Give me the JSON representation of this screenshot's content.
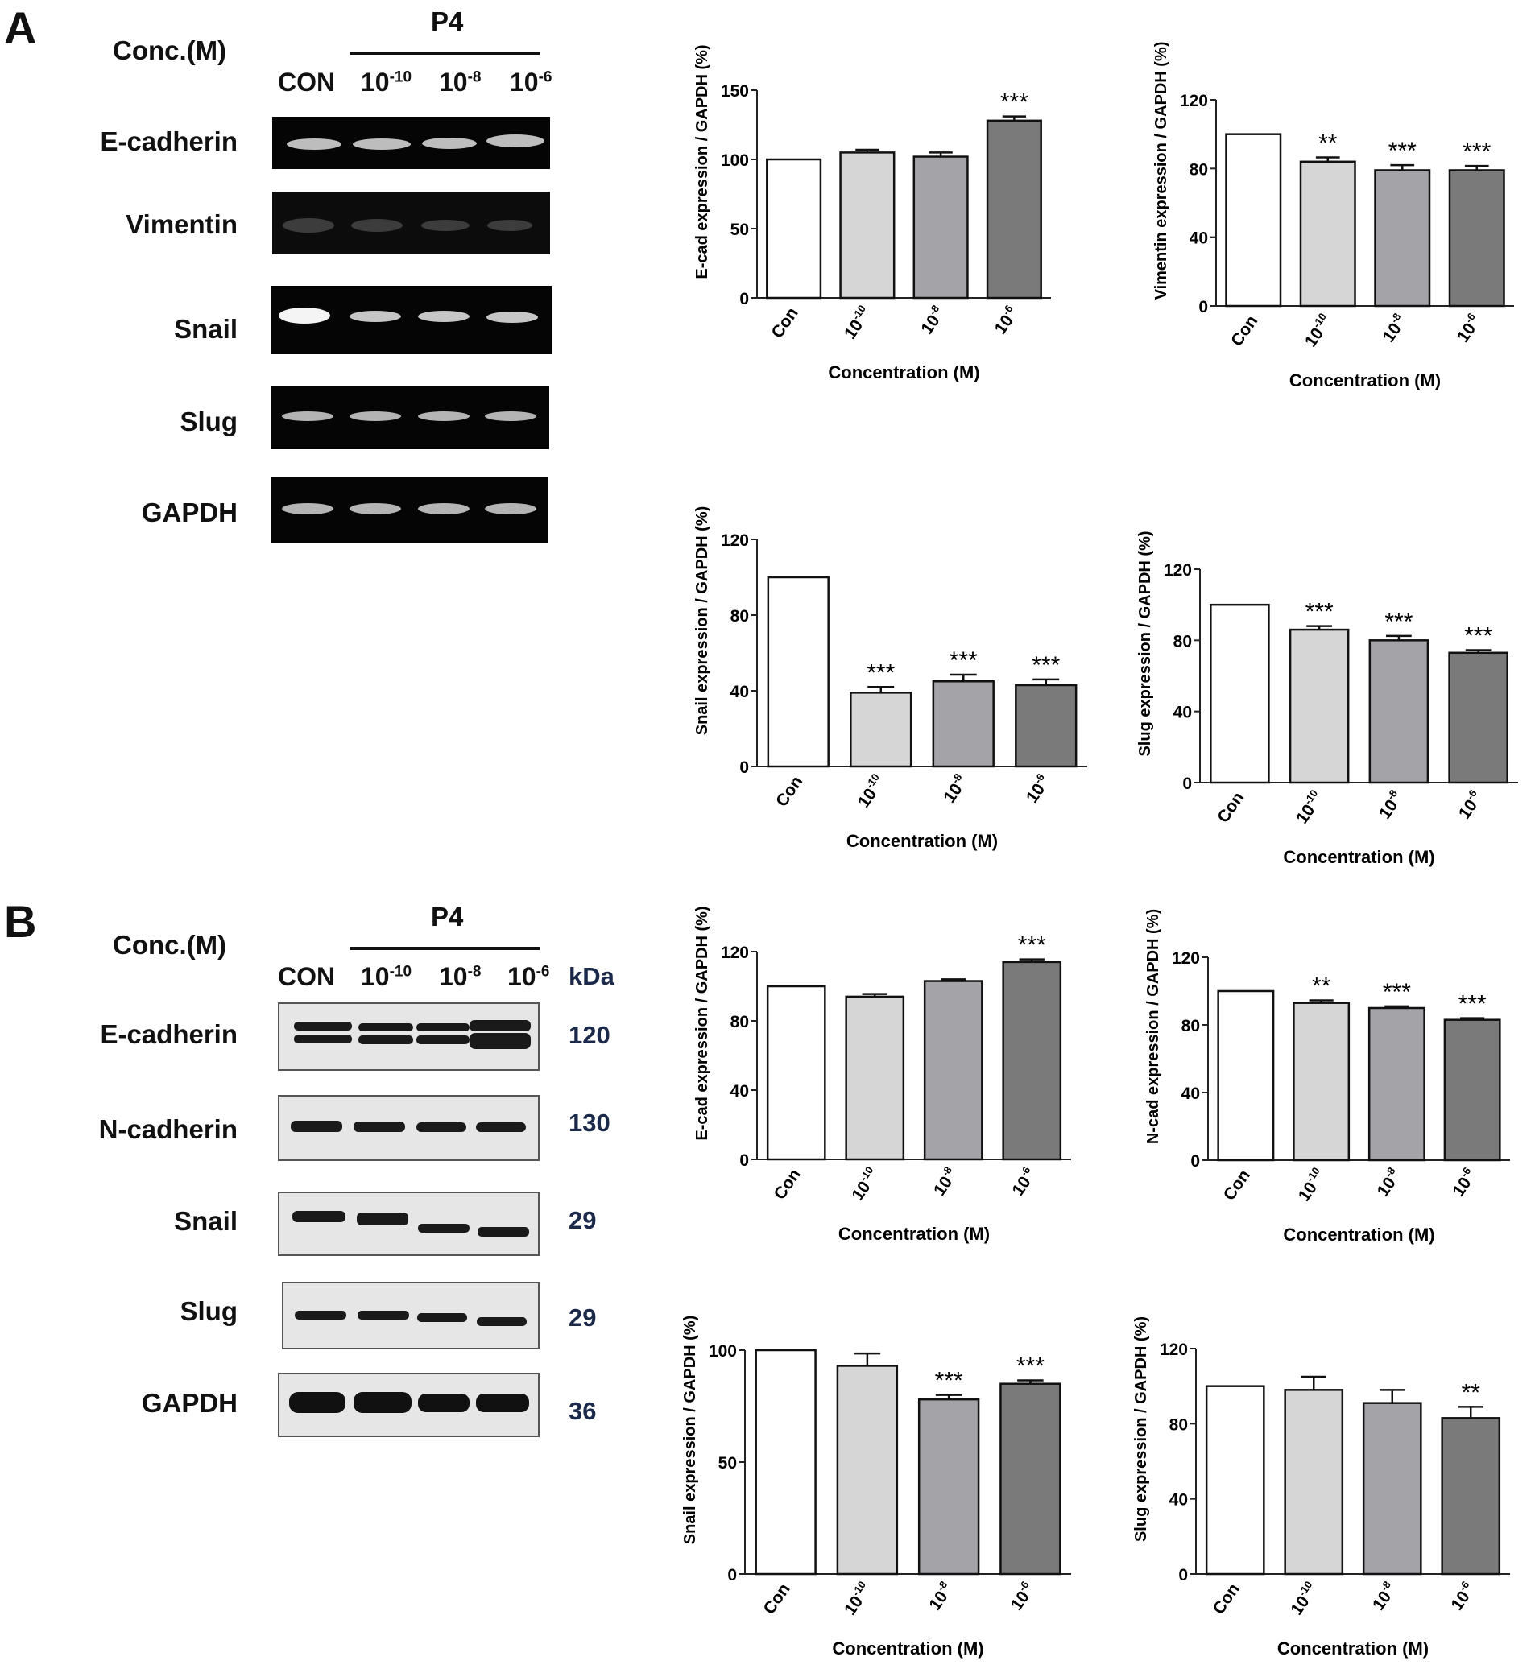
{
  "panels": {
    "A": {
      "letter": "A",
      "conc_label": "Conc.(M)",
      "treatment": "P4",
      "lanes": [
        {
          "base": "CON",
          "exp": ""
        },
        {
          "base": "10",
          "exp": "-10"
        },
        {
          "base": "10",
          "exp": "-8"
        },
        {
          "base": "10",
          "exp": "-6"
        }
      ],
      "rows": [
        "E-cadherin",
        "Vimentin",
        "Snail",
        "Slug",
        "GAPDH"
      ]
    },
    "B": {
      "letter": "B",
      "conc_label": "Conc.(M)",
      "treatment": "P4",
      "lanes": [
        {
          "base": "CON",
          "exp": ""
        },
        {
          "base": "10",
          "exp": "-10"
        },
        {
          "base": "10",
          "exp": "-8"
        },
        {
          "base": "10",
          "exp": "-6"
        }
      ],
      "kda_header": "kDa",
      "rows": [
        {
          "name": "E-cadherin",
          "kda": "120"
        },
        {
          "name": "N-cadherin",
          "kda": "130"
        },
        {
          "name": "Snail",
          "kda": "29"
        },
        {
          "name": "Slug",
          "kda": "29"
        },
        {
          "name": "GAPDH",
          "kda": "36"
        }
      ]
    }
  },
  "category_labels": [
    {
      "base": "Con",
      "exp": ""
    },
    {
      "base": "10",
      "exp": "-10"
    },
    {
      "base": "10",
      "exp": "-8"
    },
    {
      "base": "10",
      "exp": "-6"
    }
  ],
  "bar_colors": [
    "#ffffff",
    "#d6d6d6",
    "#a3a3a8",
    "#7a7a7a"
  ],
  "chart_data": [
    {
      "type": "bar",
      "panel": "A",
      "ylabel": "E-cad expression / GAPDH (%)",
      "xlabel": "Concentration (M)",
      "yticks": [
        0,
        50,
        100,
        150
      ],
      "ylim": [
        0,
        150
      ],
      "values": [
        100,
        105,
        102,
        128
      ],
      "errors": [
        0,
        2,
        3,
        3
      ],
      "significance": [
        "",
        "",
        "",
        "***"
      ]
    },
    {
      "type": "bar",
      "panel": "A",
      "ylabel": "Vimentin expression / GAPDH (%)",
      "xlabel": "Concentration (M)",
      "yticks": [
        0,
        40,
        80,
        120
      ],
      "ylim": [
        0,
        120
      ],
      "values": [
        100,
        84,
        79,
        79
      ],
      "errors": [
        0,
        2.5,
        3,
        2.5
      ],
      "significance": [
        "",
        "**",
        "***",
        "***"
      ]
    },
    {
      "type": "bar",
      "panel": "A",
      "ylabel": "Snail expression / GAPDH (%)",
      "xlabel": "Concentration (M)",
      "yticks": [
        0,
        40,
        80,
        120
      ],
      "ylim": [
        0,
        120
      ],
      "values": [
        100,
        39,
        45,
        43
      ],
      "errors": [
        0,
        3,
        3.5,
        3
      ],
      "significance": [
        "",
        "***",
        "***",
        "***"
      ]
    },
    {
      "type": "bar",
      "panel": "A",
      "ylabel": "Slug expression / GAPDH (%)",
      "xlabel": "Concentration (M)",
      "yticks": [
        0,
        40,
        80,
        120
      ],
      "ylim": [
        0,
        120
      ],
      "values": [
        100,
        86,
        80,
        73
      ],
      "errors": [
        0,
        2,
        2.5,
        1.5
      ],
      "significance": [
        "",
        "***",
        "***",
        "***"
      ]
    },
    {
      "type": "bar",
      "panel": "B",
      "ylabel": "E-cad expression / GAPDH (%)",
      "xlabel": "Concentration (M)",
      "yticks": [
        0,
        40,
        80,
        120
      ],
      "ylim": [
        0,
        120
      ],
      "values": [
        100,
        94,
        103,
        114
      ],
      "errors": [
        0,
        1.5,
        1,
        1.5
      ],
      "significance": [
        "",
        "",
        "",
        "***"
      ]
    },
    {
      "type": "bar",
      "panel": "B",
      "ylabel": "N-cad expression / GAPDH (%)",
      "xlabel": "Concentration (M)",
      "yticks": [
        0,
        40,
        80,
        120
      ],
      "ylim": [
        0,
        120
      ],
      "values": [
        100,
        93,
        90,
        83
      ],
      "errors": [
        0,
        1.5,
        1,
        1
      ],
      "significance": [
        "",
        "**",
        "***",
        "***"
      ]
    },
    {
      "type": "bar",
      "panel": "B",
      "ylabel": "Snail expression / GAPDH (%)",
      "xlabel": "Concentration (M)",
      "yticks": [
        0,
        50,
        100
      ],
      "ylim": [
        0,
        100
      ],
      "values": [
        100,
        93,
        78,
        85
      ],
      "errors": [
        0,
        5.5,
        2,
        1.5
      ],
      "significance": [
        "",
        "",
        "***",
        "***"
      ]
    },
    {
      "type": "bar",
      "panel": "B",
      "ylabel": "Slug expression / GAPDH (%)",
      "xlabel": "Concentration (M)",
      "yticks": [
        0,
        40,
        80,
        120
      ],
      "ylim": [
        0,
        120
      ],
      "values": [
        100,
        98,
        91,
        83
      ],
      "errors": [
        0,
        7,
        7,
        6
      ],
      "significance": [
        "",
        "",
        "",
        "**"
      ]
    }
  ]
}
